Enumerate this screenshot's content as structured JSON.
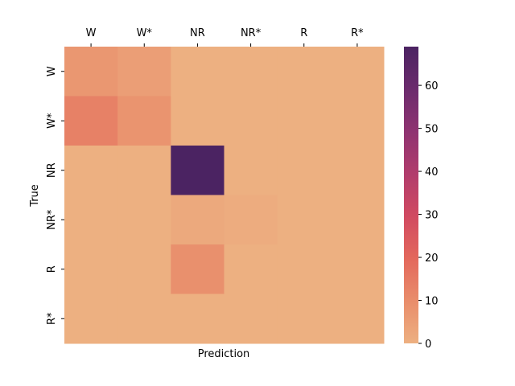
{
  "chart_data": {
    "type": "heatmap",
    "x_categories": [
      "W",
      "W*",
      "NR",
      "NR*",
      "R",
      "R*"
    ],
    "y_categories": [
      "W",
      "W*",
      "NR",
      "NR*",
      "R",
      "R*"
    ],
    "xlabel": "Prediction",
    "ylabel": "True",
    "x_ticks_position": "top",
    "values": [
      [
        7,
        5,
        0,
        0,
        0,
        0
      ],
      [
        13,
        8,
        0,
        0,
        0,
        0
      ],
      [
        0,
        0,
        69,
        0,
        0,
        0
      ],
      [
        0,
        0,
        2,
        1,
        0,
        0
      ],
      [
        0,
        0,
        9,
        0,
        0,
        0
      ],
      [
        0,
        0,
        0,
        0,
        0,
        0
      ]
    ],
    "colorbar": {
      "min": 0,
      "max": 69,
      "ticks": [
        0,
        10,
        20,
        30,
        40,
        50,
        60
      ],
      "tick_labels": [
        "0",
        "10",
        "20",
        "30",
        "40",
        "50",
        "60"
      ],
      "colormap": "flare",
      "color_stops": [
        "#edb081",
        "#e98d6b",
        "#e3685c",
        "#d14a61",
        "#b13c6c",
        "#8f3371",
        "#6c2b6d",
        "#4b2362"
      ]
    }
  }
}
